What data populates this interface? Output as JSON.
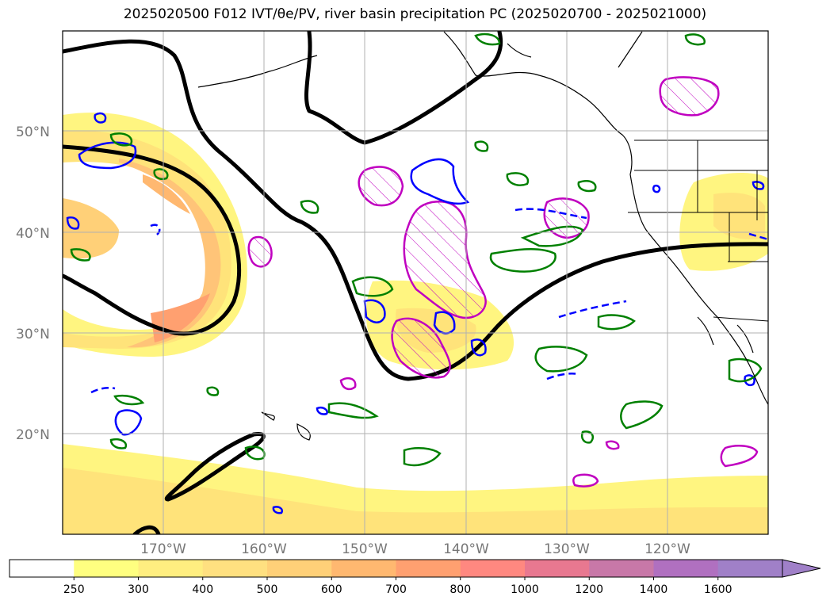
{
  "title": "2025020500 F012 IVT/θe/PV, river basin precipitation PC (2025020700 - 2025021000)",
  "map": {
    "lat_labels": [
      "50°N",
      "40°N",
      "30°N",
      "20°N"
    ],
    "lon_labels": [
      "170°W",
      "160°W",
      "150°W",
      "140°W",
      "130°W",
      "120°W"
    ],
    "colors": {
      "frame": "#000000",
      "grid": "#b0b0b0",
      "theta_e_contour": "#000000",
      "pv_positive": "#0000ff",
      "pv_negative": "#008000",
      "precip_pc": "#c000c0"
    }
  },
  "colorbar": {
    "levels": [
      "250",
      "300",
      "400",
      "500",
      "600",
      "700",
      "800",
      "1000",
      "1200",
      "1400",
      "1600"
    ],
    "colors": [
      "#ffffff",
      "#ffff80",
      "#ffee80",
      "#ffe080",
      "#ffd078",
      "#ffb870",
      "#ffa070",
      "#ff8880",
      "#e87890",
      "#c878a8",
      "#b070c0",
      "#a080c8"
    ]
  }
}
